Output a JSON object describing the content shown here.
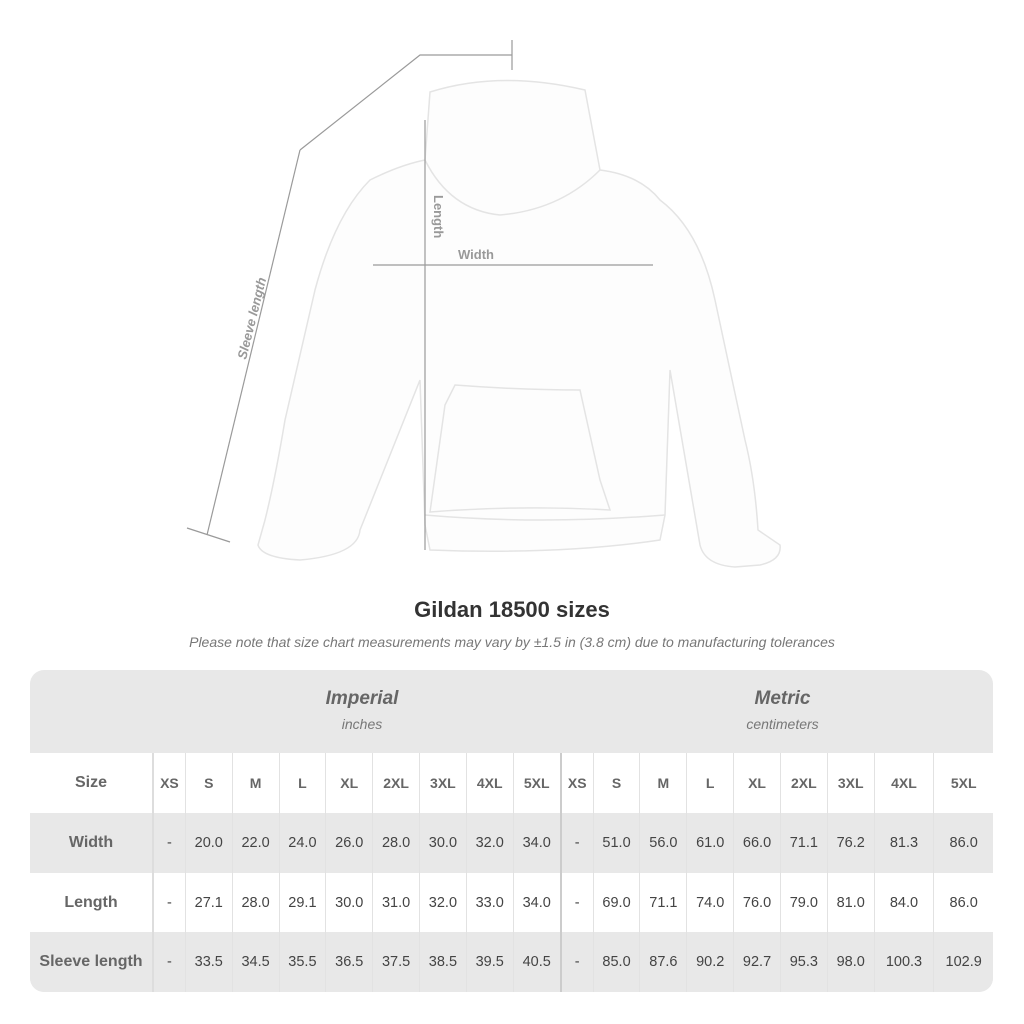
{
  "illustration": {
    "labels": {
      "sleeve": "Sleeve length",
      "length": "Length",
      "width": "Width"
    }
  },
  "title": "Gildan 18500 sizes",
  "subtitle": "Please note that size chart measurements may vary by ±1.5 in (3.8 cm) due to manufacturing tolerances",
  "table": {
    "imperial": {
      "name": "Imperial",
      "unit": "inches"
    },
    "metric": {
      "name": "Metric",
      "unit": "centimeters"
    },
    "size_label": "Size",
    "sizes": [
      "XS",
      "S",
      "M",
      "L",
      "XL",
      "2XL",
      "3XL",
      "4XL",
      "5XL"
    ],
    "rows": [
      {
        "label": "Width",
        "imperial": [
          "-",
          "20.0",
          "22.0",
          "24.0",
          "26.0",
          "28.0",
          "30.0",
          "32.0",
          "34.0"
        ],
        "metric": [
          "-",
          "51.0",
          "56.0",
          "61.0",
          "66.0",
          "71.1",
          "76.2",
          "81.3",
          "86.0"
        ]
      },
      {
        "label": "Length",
        "imperial": [
          "-",
          "27.1",
          "28.0",
          "29.1",
          "30.0",
          "31.0",
          "32.0",
          "33.0",
          "34.0"
        ],
        "metric": [
          "-",
          "69.0",
          "71.1",
          "74.0",
          "76.0",
          "79.0",
          "81.0",
          "84.0",
          "86.0"
        ]
      },
      {
        "label": "Sleeve length",
        "imperial": [
          "-",
          "33.5",
          "34.5",
          "35.5",
          "36.5",
          "37.5",
          "38.5",
          "39.5",
          "40.5"
        ],
        "metric": [
          "-",
          "85.0",
          "87.6",
          "90.2",
          "92.7",
          "95.3",
          "98.0",
          "100.3",
          "102.9"
        ]
      }
    ]
  }
}
